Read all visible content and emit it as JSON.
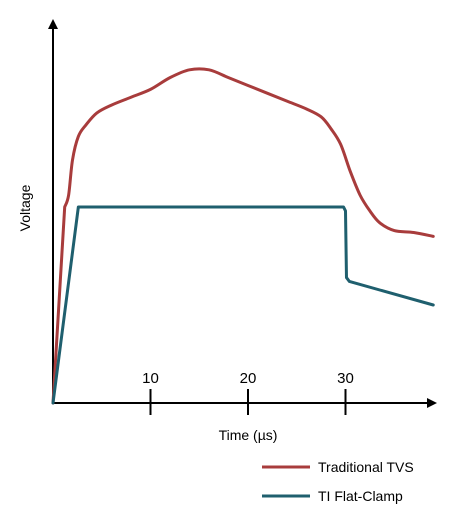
{
  "chart_data": {
    "type": "line",
    "xlabel": "Time (µs)",
    "ylabel": "Voltage",
    "xlim": [
      0,
      40
    ],
    "ylim": [
      0,
      10
    ],
    "x_ticks": [
      10,
      20,
      30
    ],
    "x_tick_labels": [
      "10",
      "20",
      "30"
    ],
    "grid": false,
    "legend_position": "bottom-right",
    "series": [
      {
        "name": "Traditional TVS",
        "color": "#a83c3c",
        "x": [
          0,
          1.2,
          1.6,
          2.0,
          2.6,
          3.4,
          4.5,
          6,
          8,
          10,
          12,
          14,
          16,
          18,
          20,
          22,
          24,
          26,
          27.5,
          28.5,
          29.5,
          30.5,
          31.5,
          32.5,
          33.5,
          35,
          37,
          39
        ],
        "values": [
          0,
          5.0,
          5.3,
          6.2,
          6.8,
          7.1,
          7.4,
          7.6,
          7.8,
          8.0,
          8.3,
          8.5,
          8.5,
          8.3,
          8.1,
          7.9,
          7.7,
          7.5,
          7.3,
          7.0,
          6.6,
          5.9,
          5.3,
          4.9,
          4.6,
          4.4,
          4.35,
          4.25
        ]
      },
      {
        "name": "TI Flat-Clamp",
        "color": "#1f5f6e",
        "x": [
          0,
          2.6,
          29.8,
          30.0,
          30.1,
          30.4,
          39
        ],
        "values": [
          0,
          5.0,
          5.0,
          4.9,
          3.2,
          3.1,
          2.5
        ]
      }
    ]
  }
}
